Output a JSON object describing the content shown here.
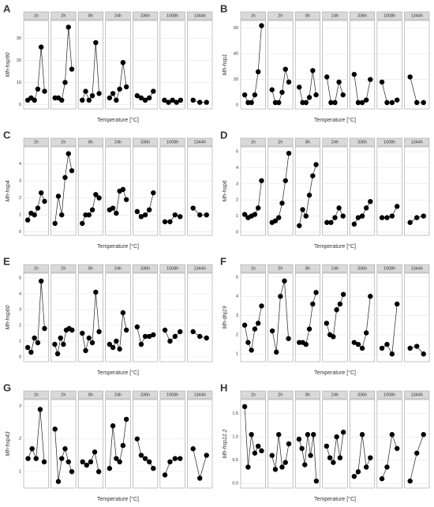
{
  "chart_data": [
    {
      "type": "line",
      "label": "A",
      "ylabel": "Mh-hsp90",
      "xlabel": "Temperature [°C]",
      "ylim": [
        -2,
        38
      ],
      "yticks": [
        0,
        10,
        20,
        30
      ],
      "facets": [
        {
          "name": "1h",
          "values": [
            2,
            3,
            2,
            7,
            26,
            6
          ]
        },
        {
          "name": "2h",
          "values": [
            3,
            3,
            2,
            10,
            35,
            16
          ]
        },
        {
          "name": "8h",
          "values": [
            2,
            6,
            2,
            4,
            28,
            5
          ]
        },
        {
          "name": "24h",
          "values": [
            3,
            5,
            2,
            7,
            19,
            8
          ]
        },
        {
          "name": "336h",
          "values": [
            4,
            3,
            2,
            3,
            6
          ]
        },
        {
          "name": "1008h",
          "values": [
            2,
            1,
            2,
            1,
            2
          ]
        },
        {
          "name": "1344h",
          "values": [
            2,
            1,
            1
          ]
        }
      ]
    },
    {
      "type": "line",
      "label": "B",
      "ylabel": "Mh-hsp1",
      "xlabel": "Temperature [°C]",
      "ylim": [
        -3,
        66
      ],
      "yticks": [
        0,
        20,
        40,
        60
      ],
      "facets": [
        {
          "name": "1h",
          "values": [
            8,
            2,
            2,
            8,
            26,
            62
          ]
        },
        {
          "name": "2h",
          "values": [
            12,
            2,
            2,
            10,
            28,
            18
          ]
        },
        {
          "name": "8h",
          "values": [
            14,
            2,
            2,
            6,
            27,
            8
          ]
        },
        {
          "name": "24h",
          "values": [
            22,
            2,
            2,
            18,
            8
          ]
        },
        {
          "name": "336h",
          "values": [
            24,
            2,
            2,
            4,
            20
          ]
        },
        {
          "name": "1008h",
          "values": [
            18,
            2,
            2,
            4
          ]
        },
        {
          "name": "1344h",
          "values": [
            22,
            2,
            2
          ]
        }
      ]
    },
    {
      "type": "line",
      "label": "C",
      "ylabel": "Mh-hsp4",
      "xlabel": "Temperature [°C]",
      "ylim": [
        -0.2,
        5
      ],
      "yticks": [
        0,
        1,
        2,
        3,
        4
      ],
      "facets": [
        {
          "name": "1h",
          "values": [
            0.7,
            1.1,
            1.0,
            1.4,
            2.3,
            1.8
          ]
        },
        {
          "name": "2h",
          "values": [
            0.5,
            2.1,
            1.0,
            3.2,
            4.6,
            3.6
          ]
        },
        {
          "name": "8h",
          "values": [
            0.5,
            1.0,
            1.0,
            1.3,
            2.2,
            2.0
          ]
        },
        {
          "name": "24h",
          "values": [
            1.3,
            1.4,
            1.1,
            2.4,
            2.5,
            1.9
          ]
        },
        {
          "name": "336h",
          "values": [
            1.2,
            0.9,
            1.0,
            1.3,
            2.3
          ]
        },
        {
          "name": "1008h",
          "values": [
            0.6,
            0.6,
            1.0,
            0.9
          ]
        },
        {
          "name": "1344h",
          "values": [
            1.4,
            1.0,
            1.0
          ]
        }
      ]
    },
    {
      "type": "line",
      "label": "D",
      "ylabel": "Mh-hsp6",
      "xlabel": "Temperature [°C]",
      "ylim": [
        -0.2,
        5.3
      ],
      "yticks": [
        0,
        1,
        2,
        3,
        4,
        5
      ],
      "facets": [
        {
          "name": "1h",
          "values": [
            1.1,
            0.9,
            1.0,
            1.1,
            1.5,
            3.2
          ]
        },
        {
          "name": "2h",
          "values": [
            0.6,
            0.7,
            0.9,
            1.8,
            3.2,
            4.9
          ]
        },
        {
          "name": "8h",
          "values": [
            0.4,
            1.4,
            1.0,
            2.3,
            3.5,
            4.2
          ]
        },
        {
          "name": "24h",
          "values": [
            0.6,
            0.6,
            0.9,
            1.5,
            1.0
          ]
        },
        {
          "name": "336h",
          "values": [
            0.5,
            0.9,
            1.0,
            1.5,
            1.9
          ]
        },
        {
          "name": "1008h",
          "values": [
            0.9,
            0.9,
            1.0,
            1.6
          ]
        },
        {
          "name": "1344h",
          "values": [
            0.6,
            0.9,
            1.0
          ]
        }
      ]
    },
    {
      "type": "line",
      "label": "E",
      "ylabel": "Mh-hsp60",
      "xlabel": "Temperature [°C]",
      "ylim": [
        -0.3,
        5.3
      ],
      "yticks": [
        0,
        1,
        2,
        3,
        4,
        5
      ],
      "facets": [
        {
          "name": "1h",
          "values": [
            0.6,
            0.3,
            1.2,
            0.9,
            4.8,
            1.8
          ]
        },
        {
          "name": "2h",
          "values": [
            0.8,
            0.2,
            1.2,
            0.8,
            1.7,
            1.8,
            1.7
          ]
        },
        {
          "name": "8h",
          "values": [
            1.5,
            0.4,
            1.2,
            0.9,
            4.1,
            1.6
          ]
        },
        {
          "name": "24h",
          "values": [
            0.8,
            0.6,
            1.0,
            0.5,
            2.8,
            1.7
          ]
        },
        {
          "name": "336h",
          "values": [
            1.9,
            0.8,
            1.3,
            1.3,
            1.4
          ]
        },
        {
          "name": "1008h",
          "values": [
            1.7,
            1.0,
            1.3,
            1.6
          ]
        },
        {
          "name": "1344h",
          "values": [
            1.6,
            1.3,
            1.2
          ]
        }
      ]
    },
    {
      "type": "line",
      "label": "F",
      "ylabel": "Mh-dnj19",
      "xlabel": "Temperature [°C]",
      "ylim": [
        0.6,
        5.2
      ],
      "yticks": [
        1,
        2,
        3,
        4,
        5
      ],
      "facets": [
        {
          "name": "1h",
          "values": [
            2.5,
            1.6,
            1.2,
            2.3,
            2.6,
            3.5
          ]
        },
        {
          "name": "2h",
          "values": [
            2.2,
            1.1,
            4.0,
            4.8,
            1.8
          ]
        },
        {
          "name": "8h",
          "values": [
            1.6,
            1.6,
            1.5,
            2.3,
            3.6,
            4.2
          ]
        },
        {
          "name": "24h",
          "values": [
            2.6,
            2.0,
            1.9,
            3.3,
            3.6,
            4.1
          ]
        },
        {
          "name": "336h",
          "values": [
            1.6,
            1.5,
            1.3,
            2.1,
            4.0
          ]
        },
        {
          "name": "1008h",
          "values": [
            1.3,
            1.5,
            1.0,
            3.6
          ]
        },
        {
          "name": "1344h",
          "values": [
            1.3,
            1.4,
            1.0
          ]
        }
      ]
    },
    {
      "type": "line",
      "label": "G",
      "ylabel": "Mh-hsp43",
      "xlabel": "Temperature [°C]",
      "ylim": [
        0.5,
        3.2
      ],
      "yticks": [
        1,
        2,
        3
      ],
      "facets": [
        {
          "name": "1h",
          "values": [
            1.4,
            1.7,
            1.4,
            2.9,
            1.3
          ]
        },
        {
          "name": "2h",
          "values": [
            2.3,
            0.7,
            1.4,
            1.7,
            1.3,
            1.0
          ]
        },
        {
          "name": "8h",
          "values": [
            1.3,
            1.2,
            1.3,
            1.6,
            1.0
          ]
        },
        {
          "name": "24h",
          "values": [
            1.1,
            2.4,
            1.4,
            1.3,
            1.8,
            2.6
          ]
        },
        {
          "name": "336h",
          "values": [
            2.0,
            1.5,
            1.4,
            1.3,
            1.1
          ]
        },
        {
          "name": "1008h",
          "values": [
            0.9,
            1.3,
            1.4,
            1.4
          ]
        },
        {
          "name": "1344h",
          "values": [
            1.7,
            0.8,
            1.5
          ]
        }
      ]
    },
    {
      "type": "line",
      "label": "H",
      "ylabel": "Mh-hsp12.2",
      "xlabel": "Temperature [°C]",
      "ylim": [
        -0.1,
        1.8
      ],
      "yticks": [
        {
          "value": 0,
          "label": "0.0"
        },
        0.5,
        {
          "value": 1,
          "label": "1.0"
        },
        1.5
      ],
      "facets": [
        {
          "name": "1h",
          "values": [
            1.65,
            0.35,
            1.05,
            0.65,
            0.8,
            0.7
          ]
        },
        {
          "name": "2h",
          "values": [
            0.6,
            0.3,
            1.05,
            0.35,
            0.45,
            0.85
          ]
        },
        {
          "name": "8h",
          "values": [
            0.95,
            0.75,
            0.4,
            1.05,
            0.6,
            1.05,
            0.05
          ]
        },
        {
          "name": "24h",
          "values": [
            0.8,
            0.55,
            0.45,
            1.0,
            0.55,
            1.1
          ]
        },
        {
          "name": "336h",
          "values": [
            0.15,
            0.25,
            1.05,
            0.35,
            0.55
          ]
        },
        {
          "name": "1008h",
          "values": [
            0.1,
            0.35,
            1.05,
            0.75
          ]
        },
        {
          "name": "1344h",
          "values": [
            0.05,
            0.65,
            1.05
          ]
        }
      ]
    }
  ]
}
